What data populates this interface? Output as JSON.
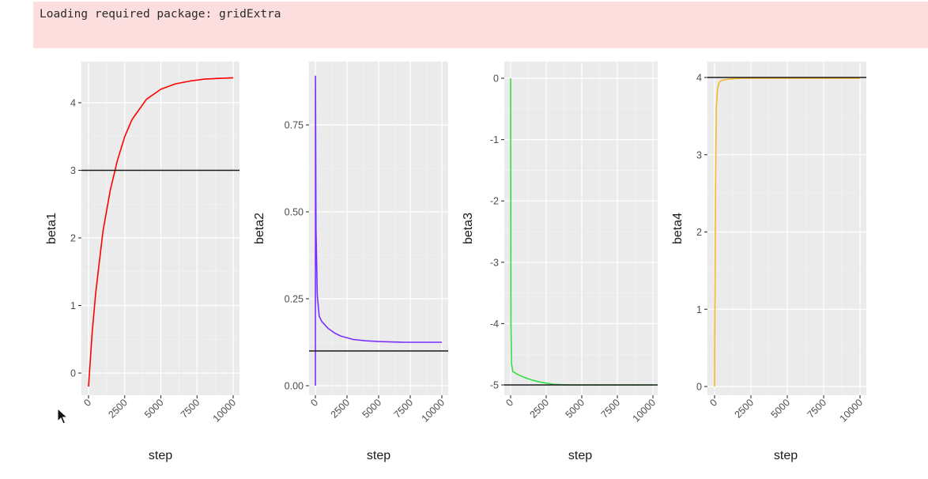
{
  "console": {
    "message": "Loading required package: gridExtra",
    "background_color": "#fddede"
  },
  "chart_data": [
    {
      "type": "line",
      "title": "",
      "xlabel": "step",
      "ylabel": "beta1",
      "color": "#ff0000",
      "x_ticks": [
        "0",
        "2500",
        "5000",
        "7500",
        "10000"
      ],
      "y_ticks": [
        "0",
        "1",
        "2",
        "3",
        "4"
      ],
      "xlim": [
        0,
        10000
      ],
      "ylim": [
        -0.3,
        4.5
      ],
      "hline": 3,
      "x": [
        0,
        250,
        500,
        1000,
        1500,
        2000,
        2500,
        3000,
        4000,
        5000,
        6000,
        7000,
        8000,
        9000,
        10000
      ],
      "values": [
        -0.2,
        0.6,
        1.2,
        2.1,
        2.7,
        3.15,
        3.5,
        3.75,
        4.05,
        4.2,
        4.28,
        4.32,
        4.35,
        4.36,
        4.37
      ]
    },
    {
      "type": "line",
      "title": "",
      "xlabel": "step",
      "ylabel": "beta2",
      "color": "#7b2fff",
      "x_ticks": [
        "0",
        "2500",
        "5000",
        "7500",
        "10000"
      ],
      "y_ticks": [
        "0.00",
        "0.25",
        "0.50",
        "0.75"
      ],
      "xlim": [
        0,
        10000
      ],
      "ylim": [
        -0.02,
        0.93
      ],
      "hline": 0.1,
      "x": [
        0,
        5,
        50,
        150,
        300,
        500,
        1000,
        1500,
        2000,
        3000,
        4000,
        5000,
        6000,
        7000,
        8000,
        9000,
        10000
      ],
      "values": [
        0.0,
        0.89,
        0.45,
        0.26,
        0.2,
        0.185,
        0.165,
        0.152,
        0.143,
        0.133,
        0.129,
        0.127,
        0.126,
        0.125,
        0.125,
        0.125,
        0.125
      ]
    },
    {
      "type": "line",
      "title": "",
      "xlabel": "step",
      "ylabel": "beta3",
      "color": "#33dd44",
      "x_ticks": [
        "0",
        "2500",
        "5000",
        "7500",
        "10000"
      ],
      "y_ticks": [
        "0",
        "-1",
        "-2",
        "-3",
        "-4",
        "-5"
      ],
      "xlim": [
        0,
        10000
      ],
      "ylim": [
        -5.15,
        0.25
      ],
      "hline": -5,
      "x": [
        0,
        20,
        60,
        150,
        500,
        1000,
        1500,
        2000,
        2500,
        3000,
        4000,
        5000,
        6000,
        7000,
        8000,
        9000,
        10000
      ],
      "values": [
        0.0,
        -4.0,
        -4.65,
        -4.78,
        -4.83,
        -4.88,
        -4.92,
        -4.95,
        -4.97,
        -4.99,
        -5.0,
        -5.0,
        -5.0,
        -5.0,
        -5.0,
        -5.0,
        -5.0
      ]
    },
    {
      "type": "line",
      "title": "",
      "xlabel": "step",
      "ylabel": "beta4",
      "color": "#f5b82e",
      "x_ticks": [
        "0",
        "2500",
        "5000",
        "7500",
        "10000"
      ],
      "y_ticks": [
        "0",
        "1",
        "2",
        "3",
        "4"
      ],
      "xlim": [
        0,
        10000
      ],
      "ylim": [
        -0.2,
        4.2
      ],
      "hline": 4,
      "x": [
        0,
        60,
        120,
        200,
        300,
        450,
        700,
        1000,
        2000,
        5000,
        10000
      ],
      "values": [
        0.0,
        2.5,
        3.6,
        3.85,
        3.93,
        3.96,
        3.97,
        3.98,
        3.99,
        3.99,
        3.99
      ]
    }
  ],
  "cursor": {
    "icon": "mouse-pointer-icon"
  }
}
